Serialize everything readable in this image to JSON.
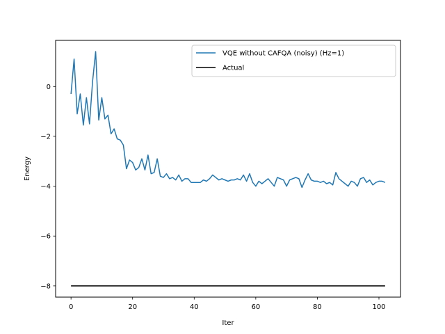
{
  "chart_data": {
    "type": "line",
    "title": "",
    "xlabel": "Iter",
    "ylabel": "Energy",
    "xlim": [
      -5,
      107
    ],
    "ylim": [
      -8.45,
      1.85
    ],
    "xticks": [
      0,
      20,
      40,
      60,
      80,
      100
    ],
    "yticks": [
      -8,
      -6,
      -4,
      -2,
      0
    ],
    "ytick_labels": [
      "−8",
      "−6",
      "−4",
      "−2",
      "0"
    ],
    "legend_position": "top-right",
    "series": [
      {
        "name": "VQE without CAFQA (noisy) (Hz=1)",
        "color": "#1f77b4",
        "x": [
          0,
          1,
          2,
          3,
          4,
          5,
          6,
          7,
          8,
          9,
          10,
          11,
          12,
          13,
          14,
          15,
          16,
          17,
          18,
          19,
          20,
          21,
          22,
          23,
          24,
          25,
          26,
          27,
          28,
          29,
          30,
          31,
          32,
          33,
          34,
          35,
          36,
          37,
          38,
          39,
          40,
          41,
          42,
          43,
          44,
          45,
          46,
          47,
          48,
          49,
          50,
          51,
          52,
          53,
          54,
          55,
          56,
          57,
          58,
          59,
          60,
          61,
          62,
          63,
          64,
          65,
          66,
          67,
          68,
          69,
          70,
          71,
          72,
          73,
          74,
          75,
          76,
          77,
          78,
          79,
          80,
          81,
          82,
          83,
          84,
          85,
          86,
          87,
          88,
          89,
          90,
          91,
          92,
          93,
          94,
          95,
          96,
          97,
          98,
          99,
          100,
          101,
          102
        ],
        "y": [
          -0.3,
          1.1,
          -1.1,
          -0.3,
          -1.55,
          -0.45,
          -1.5,
          0.2,
          1.4,
          -1.35,
          -0.45,
          -1.3,
          -1.15,
          -1.9,
          -1.7,
          -2.1,
          -2.15,
          -2.35,
          -3.3,
          -2.95,
          -3.05,
          -3.35,
          -3.25,
          -2.9,
          -3.35,
          -2.75,
          -3.5,
          -3.45,
          -2.9,
          -3.6,
          -3.65,
          -3.5,
          -3.7,
          -3.65,
          -3.75,
          -3.55,
          -3.8,
          -3.7,
          -3.7,
          -3.85,
          -3.85,
          -3.85,
          -3.85,
          -3.75,
          -3.8,
          -3.7,
          -3.55,
          -3.65,
          -3.75,
          -3.7,
          -3.75,
          -3.8,
          -3.75,
          -3.75,
          -3.7,
          -3.75,
          -3.55,
          -3.8,
          -3.5,
          -3.85,
          -4.0,
          -3.8,
          -3.9,
          -3.8,
          -3.7,
          -3.85,
          -4.0,
          -3.65,
          -3.7,
          -3.75,
          -4.0,
          -3.75,
          -3.7,
          -3.65,
          -3.7,
          -4.05,
          -3.75,
          -3.5,
          -3.75,
          -3.8,
          -3.8,
          -3.85,
          -3.8,
          -3.9,
          -3.85,
          -3.95,
          -3.45,
          -3.7,
          -3.8,
          -3.9,
          -4.0,
          -3.8,
          -3.85,
          -4.0,
          -3.7,
          -3.65,
          -3.85,
          -3.75,
          -3.95,
          -3.85,
          -3.8,
          -3.8,
          -3.85
        ]
      },
      {
        "name": "Actual",
        "color": "#000000",
        "x": [
          0,
          102
        ],
        "y": [
          -8,
          -8
        ]
      }
    ]
  }
}
